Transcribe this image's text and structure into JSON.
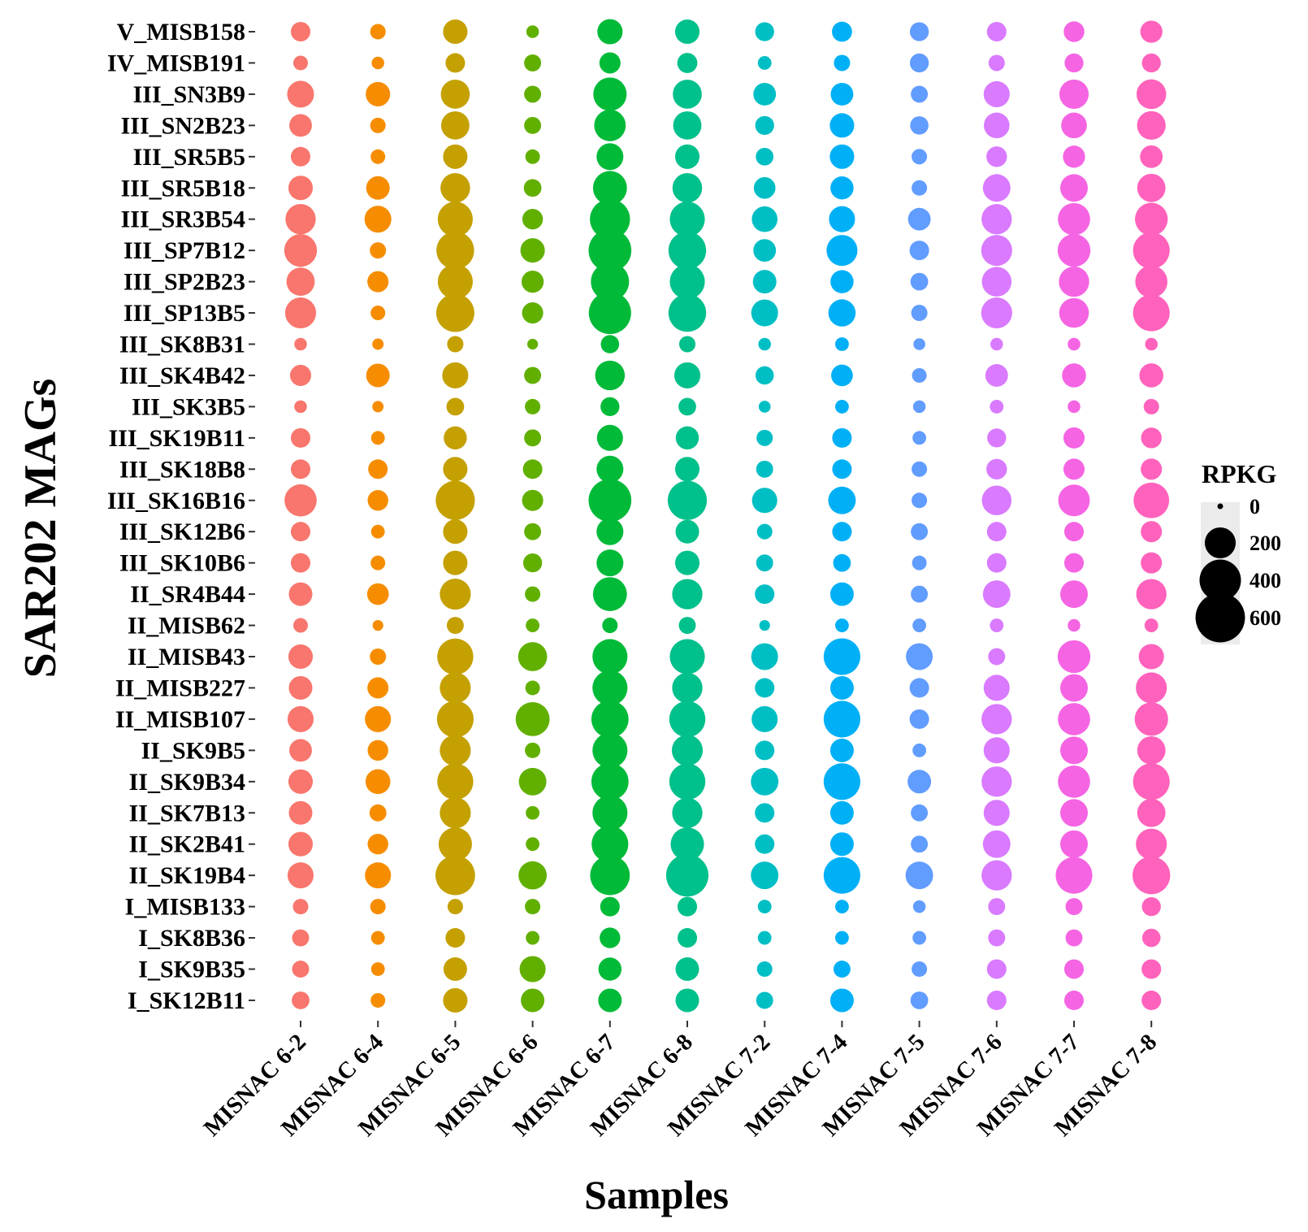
{
  "chart_data": {
    "type": "scatter",
    "subtype": "bubble-grid",
    "xlabel": "Samples",
    "ylabel": "SAR202 MAGs",
    "x_categories": [
      "MISNAC 6-2",
      "MISNAC 6-4",
      "MISNAC 6-5",
      "MISNAC 6-6",
      "MISNAC 6-7",
      "MISNAC 6-8",
      "MISNAC 7-2",
      "MISNAC 7-4",
      "MISNAC 7-5",
      "MISNAC 7-6",
      "MISNAC 7-7",
      "MISNAC 7-8"
    ],
    "y_categories": [
      "V_MISB158",
      "IV_MISB191",
      "III_SN3B9",
      "III_SN2B23",
      "III_SR5B5",
      "III_SR5B18",
      "III_SR3B54",
      "III_SP7B12",
      "III_SP2B23",
      "III_SP13B5",
      "III_SK8B31",
      "III_SK4B42",
      "III_SK3B5",
      "III_SK19B11",
      "III_SK18B8",
      "III_SK16B16",
      "III_SK12B6",
      "III_SK10B6",
      "II_SR4B44",
      "II_MISB62",
      "II_MISB43",
      "II_MISB227",
      "II_MISB107",
      "II_SK9B5",
      "II_SK9B34",
      "II_SK7B13",
      "II_SK2B41",
      "II_SK19B4",
      "I_MISB133",
      "I_SK8B36",
      "I_SK9B35",
      "I_SK12B11"
    ],
    "sample_colors": [
      "#F8766D",
      "#F68D00",
      "#C4A000",
      "#61B000",
      "#00BA38",
      "#00C08B",
      "#00BFC4",
      "#00B0F6",
      "#619CFF",
      "#D97AFF",
      "#F564E3",
      "#FF62BC"
    ],
    "legend": {
      "title": "RPKG",
      "breaks": [
        0,
        200,
        400,
        600
      ],
      "labels": [
        "0",
        "200",
        "400",
        "600"
      ],
      "position": "right"
    },
    "values": [
      [
        60,
        30,
        110,
        15,
        120,
        110,
        55,
        65,
        55,
        60,
        70,
        85
      ],
      [
        25,
        15,
        60,
        40,
        75,
        65,
        20,
        35,
        55,
        35,
        55,
        55
      ],
      [
        140,
        110,
        170,
        40,
        240,
        170,
        90,
        90,
        40,
        130,
        175,
        180
      ],
      [
        90,
        30,
        160,
        40,
        210,
        160,
        55,
        110,
        50,
        125,
        125,
        165
      ],
      [
        60,
        25,
        110,
        25,
        140,
        110,
        45,
        110,
        30,
        70,
        85,
        90
      ],
      [
        110,
        100,
        180,
        45,
        250,
        180,
        80,
        95,
        30,
        150,
        150,
        160
      ],
      [
        190,
        140,
        270,
        70,
        370,
        270,
        125,
        130,
        90,
        190,
        220,
        230
      ],
      [
        230,
        35,
        320,
        110,
        430,
        320,
        90,
        200,
        60,
        200,
        230,
        300
      ],
      [
        160,
        75,
        270,
        85,
        330,
        270,
        100,
        95,
        45,
        180,
        190,
        220
      ],
      [
        200,
        25,
        330,
        75,
        420,
        320,
        140,
        145,
        35,
        200,
        180,
        300
      ],
      [
        15,
        10,
        35,
        8,
        50,
        35,
        15,
        20,
        12,
        15,
        15,
        15
      ],
      [
        75,
        100,
        130,
        40,
        180,
        130,
        50,
        80,
        25,
        90,
        105,
        105
      ],
      [
        15,
        10,
        45,
        30,
        55,
        45,
        12,
        20,
        15,
        20,
        15,
        30
      ],
      [
        60,
        20,
        95,
        40,
        130,
        95,
        35,
        60,
        20,
        55,
        75,
        70
      ],
      [
        60,
        60,
        110,
        60,
        140,
        110,
        40,
        60,
        30,
        70,
        75,
        75
      ],
      [
        220,
        70,
        350,
        75,
        430,
        350,
        120,
        150,
        30,
        180,
        210,
        280
      ],
      [
        60,
        20,
        110,
        40,
        140,
        100,
        30,
        60,
        40,
        60,
        60,
        75
      ],
      [
        60,
        25,
        110,
        55,
        140,
        110,
        40,
        45,
        25,
        60,
        60,
        75
      ],
      [
        100,
        80,
        200,
        30,
        250,
        190,
        60,
        100,
        40,
        150,
        150,
        190
      ],
      [
        25,
        8,
        40,
        20,
        30,
        40,
        8,
        20,
        20,
        20,
        15,
        20
      ],
      [
        110,
        35,
        290,
        170,
        270,
        270,
        140,
        300,
        140,
        40,
        230,
        120
      ],
      [
        100,
        75,
        200,
        25,
        270,
        190,
        60,
        100,
        60,
        130,
        150,
        200
      ],
      [
        130,
        130,
        300,
        250,
        310,
        290,
        130,
        300,
        60,
        190,
        220,
        240
      ],
      [
        90,
        70,
        200,
        30,
        270,
        200,
        60,
        100,
        20,
        130,
        150,
        160
      ],
      [
        110,
        115,
        290,
        150,
        310,
        290,
        150,
        300,
        100,
        190,
        220,
        300
      ],
      [
        100,
        40,
        200,
        20,
        270,
        190,
        60,
        100,
        40,
        130,
        150,
        160
      ],
      [
        110,
        70,
        240,
        20,
        300,
        240,
        60,
        100,
        40,
        150,
        150,
        200
      ],
      [
        130,
        130,
        360,
        160,
        360,
        420,
        150,
        300,
        150,
        190,
        300,
        320
      ],
      [
        30,
        30,
        30,
        30,
        60,
        60,
        20,
        20,
        15,
        40,
        40,
        55
      ],
      [
        40,
        20,
        60,
        20,
        70,
        60,
        20,
        20,
        20,
        40,
        40,
        50
      ],
      [
        40,
        20,
        100,
        130,
        95,
        100,
        30,
        40,
        30,
        60,
        60,
        60
      ],
      [
        45,
        25,
        110,
        100,
        100,
        100,
        40,
        100,
        45,
        60,
        60,
        60
      ]
    ]
  }
}
